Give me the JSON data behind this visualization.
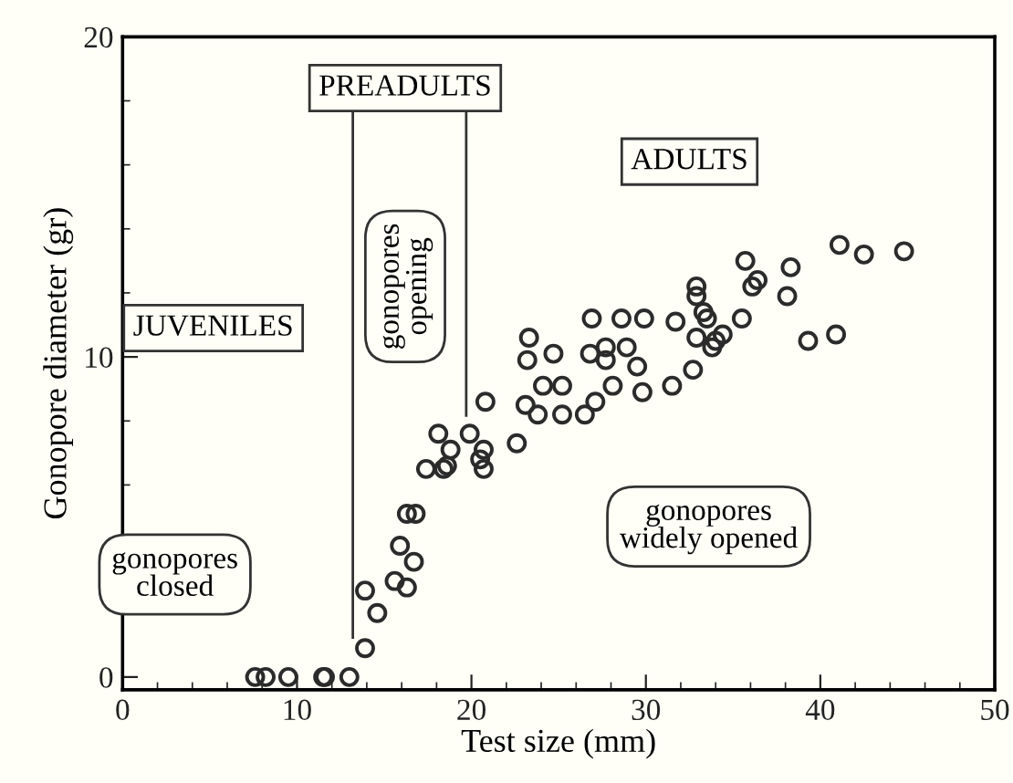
{
  "chart_data": {
    "type": "scatter",
    "xlabel": "Test size (mm)",
    "ylabel": "Gonopore diameter (gr)",
    "xlim": [
      0,
      50
    ],
    "ylim": [
      -0.4,
      20
    ],
    "xticks": [
      0,
      10,
      20,
      30,
      40,
      50
    ],
    "yticks": [
      0,
      10,
      20
    ],
    "marker": "circle",
    "grid": false,
    "legend": false,
    "annotations": [
      "JUVENILES",
      "PREADULTS",
      "ADULTS",
      "gonopores\nopening",
      "gonopores\nclosed",
      "gonopores\nwidely opened"
    ],
    "ref_lines": [
      {
        "axis": "x",
        "value": 13.2,
        "color": "#333333"
      },
      {
        "axis": "x",
        "value": 19.7,
        "color": "#333333"
      }
    ],
    "series": [
      {
        "color": "#2b2b2b",
        "x": [
          7.6,
          8.2,
          9.5,
          11.5,
          11.6,
          13.0,
          13.9,
          13.9,
          14.6,
          15.6,
          15.9,
          16.3,
          16.7,
          16.3,
          16.8,
          17.4,
          18.6,
          20.5,
          20.7,
          18.1,
          19.9,
          18.8,
          18.4,
          20.7,
          22.6,
          20.8,
          23.1,
          23.8,
          24.1,
          25.2,
          25.2,
          26.5,
          27.1,
          28.1,
          29.8,
          31.5,
          32.7,
          23.2,
          23.3,
          24.7,
          26.8,
          27.7,
          27.7,
          28.9,
          29.5,
          26.9,
          28.6,
          29.9,
          31.7,
          32.9,
          33.5,
          32.9,
          34.0,
          35.7,
          36.4,
          36.1,
          38.3,
          38.1,
          41.1,
          42.5,
          44.8,
          39.3,
          40.9,
          32.9,
          33.3,
          33.8,
          34.4,
          35.5
        ],
        "values": [
          0,
          0,
          0,
          0,
          0,
          0,
          0.9,
          2.7,
          2.0,
          3.0,
          4.1,
          2.8,
          3.6,
          5.1,
          5.1,
          6.5,
          6.6,
          6.8,
          6.5,
          7.6,
          7.6,
          7.1,
          6.5,
          7.1,
          7.3,
          8.6,
          8.5,
          8.2,
          9.1,
          9.1,
          8.2,
          8.2,
          8.6,
          9.1,
          8.9,
          9.1,
          9.6,
          9.9,
          10.6,
          10.1,
          10.1,
          10.3,
          9.9,
          10.3,
          9.7,
          11.2,
          11.2,
          11.2,
          11.1,
          11.9,
          11.2,
          10.6,
          10.5,
          13.0,
          12.4,
          12.2,
          12.8,
          11.9,
          13.5,
          13.2,
          13.3,
          10.5,
          10.7,
          12.2,
          11.4,
          10.3,
          10.7,
          11.2
        ]
      }
    ]
  }
}
